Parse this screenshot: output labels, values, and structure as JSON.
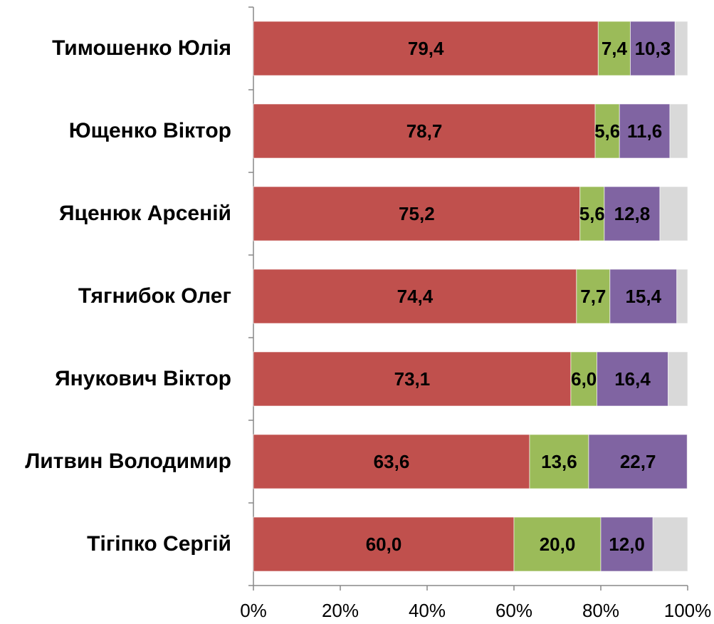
{
  "chart_data": {
    "type": "stacked-bar-horizontal",
    "categories": [
      "Тимошенко Юлія",
      "Ющенко Віктор",
      "Яценюк Арсеній",
      "Тягнибок Олег",
      "Янукович Віктор",
      "Литвин Володимир",
      "Тігіпко Сергій"
    ],
    "series": [
      {
        "color": "#c0504d",
        "values": [
          79.4,
          78.7,
          75.2,
          74.4,
          73.1,
          63.6,
          60.0
        ],
        "value_labels": [
          "79,4",
          "78,7",
          "75,2",
          "74,4",
          "73,1",
          "63,6",
          "60,0"
        ]
      },
      {
        "color": "#9bbb59",
        "values": [
          7.4,
          5.6,
          5.6,
          7.7,
          6.0,
          13.6,
          20.0
        ],
        "value_labels": [
          "7,4",
          "5,6",
          "5,6",
          "7,7",
          "6,0",
          "13,6",
          "20,0"
        ]
      },
      {
        "color": "#8064a2",
        "values": [
          10.3,
          11.6,
          12.8,
          15.4,
          16.4,
          22.7,
          12.0
        ],
        "value_labels": [
          "10,3",
          "11,6",
          "12,8",
          "15,4",
          "16,4",
          "22,7",
          "12,0"
        ]
      },
      {
        "color": "#d9d9d9",
        "values": [
          2.9,
          4.1,
          6.4,
          2.5,
          4.5,
          0.1,
          8.0
        ]
      }
    ],
    "xlim": [
      0,
      100
    ],
    "xticks": [
      {
        "value": 0,
        "label": "0%"
      },
      {
        "value": 20,
        "label": "20%"
      },
      {
        "value": 40,
        "label": "40%"
      },
      {
        "value": 60,
        "label": "60%"
      },
      {
        "value": 80,
        "label": "80%"
      },
      {
        "value": 100,
        "label": "100%"
      }
    ]
  }
}
